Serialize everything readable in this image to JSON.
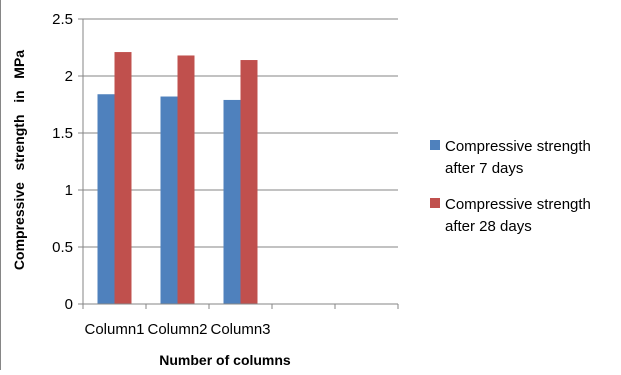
{
  "chart_data": {
    "type": "bar",
    "title": "",
    "xlabel": "Number of columns",
    "ylabel": "Compressive   strength   in   MPa",
    "categories": [
      "Column1",
      "Column2",
      "Column3",
      "",
      ""
    ],
    "series": [
      {
        "name": "Compressive strength after 7 days",
        "legend_lines": [
          "Compressive strength",
          "after 7 days"
        ],
        "color": "#4F81BD",
        "values": [
          1.84,
          1.82,
          1.79,
          null,
          null
        ]
      },
      {
        "name": "Compressive strength after 28 days",
        "legend_lines": [
          "Compressive strength",
          "after 28 days"
        ],
        "color": "#C0504D",
        "values": [
          2.21,
          2.18,
          2.14,
          null,
          null
        ]
      }
    ],
    "ylim": [
      0,
      2.5
    ],
    "yticks": [
      0,
      0.5,
      1,
      1.5,
      2,
      2.5
    ],
    "ytick_labels": [
      "0",
      "0.5",
      "1",
      "1.5",
      "2",
      "2.5"
    ],
    "grid": true,
    "legend_position": "right",
    "colors": {
      "gridline": "#868686",
      "axis": "#868686",
      "frame": "#868686"
    }
  }
}
